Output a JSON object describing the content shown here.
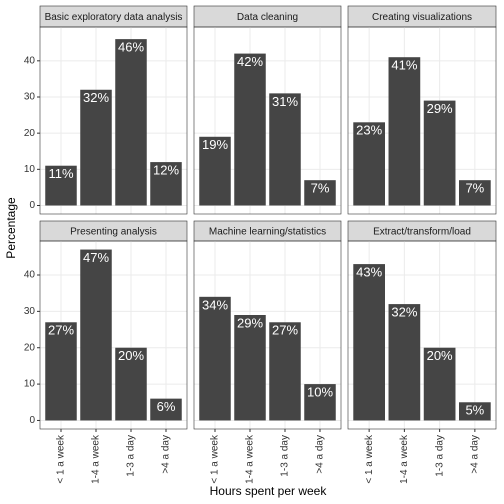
{
  "chart_data": {
    "type": "bar",
    "x_label": "Hours spent per week",
    "y_label": "Percentage",
    "categories": [
      "< 1 a week",
      "1-4 a week",
      "1-3 a day",
      ">4 a day"
    ],
    "ylim": [
      -2.35,
      49.35
    ],
    "yticks": [
      0,
      10,
      20,
      30,
      40
    ],
    "grid": true,
    "color": "#454545",
    "facets": [
      {
        "title": "Basic exploratory data analysis",
        "values": [
          11,
          32,
          46,
          12
        ],
        "value_labels": [
          "11%",
          "32%",
          "46%",
          "12%"
        ]
      },
      {
        "title": "Data cleaning",
        "values": [
          19,
          42,
          31,
          7
        ],
        "value_labels": [
          "19%",
          "42%",
          "31%",
          "7%"
        ]
      },
      {
        "title": "Creating visualizations",
        "values": [
          23,
          41,
          29,
          7
        ],
        "value_labels": [
          "23%",
          "41%",
          "29%",
          "7%"
        ]
      },
      {
        "title": "Presenting analysis",
        "values": [
          27,
          47,
          20,
          6
        ],
        "value_labels": [
          "27%",
          "47%",
          "20%",
          "6%"
        ]
      },
      {
        "title": "Machine learning/statistics",
        "values": [
          34,
          29,
          27,
          10
        ],
        "value_labels": [
          "34%",
          "29%",
          "27%",
          "10%"
        ]
      },
      {
        "title": "Extract/transform/load",
        "values": [
          43,
          32,
          20,
          5
        ],
        "value_labels": [
          "43%",
          "32%",
          "20%",
          "5%"
        ]
      }
    ]
  }
}
